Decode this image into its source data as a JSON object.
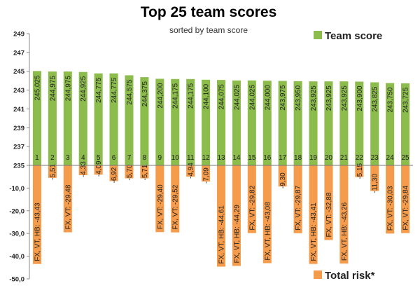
{
  "chart_data": {
    "type": "bar",
    "title": "Top 25 team scores",
    "subtitle": "sorted by team score",
    "legend": {
      "placement": "right",
      "entries": [
        "Team score",
        "Total risk*"
      ]
    },
    "colors": {
      "team_score": "#8cbc4c",
      "total_risk": "#f59c4c"
    },
    "upper_axis": {
      "ticks": [
        "249",
        "247",
        "245",
        "243",
        "241",
        "239",
        "237",
        "235"
      ],
      "range": [
        235,
        249
      ]
    },
    "lower_axis": {
      "ticks": [
        "-10,0",
        "-20,0",
        "-30,0",
        "-40,0",
        "-50,0"
      ],
      "range": [
        -50,
        0
      ]
    },
    "categories": [
      "1",
      "2",
      "3",
      "4",
      "5",
      "6",
      "7",
      "8",
      "9",
      "10",
      "11",
      "12",
      "13",
      "14",
      "15",
      "16",
      "17",
      "18",
      "19",
      "20",
      "21",
      "22",
      "23",
      "24",
      "25"
    ],
    "series": [
      {
        "name": "Team score",
        "values": [
          245.025,
          244.975,
          244.975,
          244.925,
          244.775,
          244.775,
          244.575,
          244.375,
          244.2,
          244.175,
          244.175,
          244.1,
          244.075,
          244.025,
          244.025,
          244.0,
          243.975,
          243.95,
          243.925,
          243.925,
          243.925,
          243.9,
          243.825,
          243.75,
          243.725
        ],
        "labels": [
          "245,025",
          "244,975",
          "244,975",
          "244,925",
          "244,775",
          "244,775",
          "244,575",
          "244,375",
          "244,200",
          "244,175",
          "244,175",
          "244,100",
          "244,075",
          "244,025",
          "244,025",
          "244,000",
          "243,975",
          "243,950",
          "243,925",
          "243,925",
          "243,925",
          "243,900",
          "243,825",
          "243,750",
          "243,725"
        ]
      },
      {
        "name": "Total risk*",
        "values": [
          -43.43,
          -5.51,
          -29.48,
          -4.33,
          -4.09,
          -6.92,
          -5.7,
          -5.71,
          -29.4,
          -29.52,
          -4.94,
          -7.09,
          -44.61,
          -44.29,
          -29.82,
          -43.08,
          -9.3,
          -29.87,
          -43.41,
          -32.88,
          -43.26,
          -5.15,
          -11.3,
          -30.03,
          -29.84
        ],
        "labels": [
          "FX, VT, HB: -43,43",
          "-5,51",
          "FX, VT: -29,48",
          "-4,33",
          "-4,09",
          "-6,92",
          "-5,70",
          "-5,71",
          "FX, VT: -29,40",
          "FX, VT: -29,52",
          "-4,94",
          "-7,09",
          "FX, VT, HB: -44,61",
          "FX, VT, HB: -44,29",
          "FX, VT: -29,82",
          "FX, VT, HB: -43,08",
          "-9,30",
          "FX, VT: -29,87",
          "FX, VT, HB: -43,41",
          "FX, VT: -32,88",
          "FX, VT, HB: -43,26",
          "-5,15",
          "-11,30",
          "FX, VT: -30,03",
          "FX, VT: -29,84"
        ]
      }
    ]
  }
}
